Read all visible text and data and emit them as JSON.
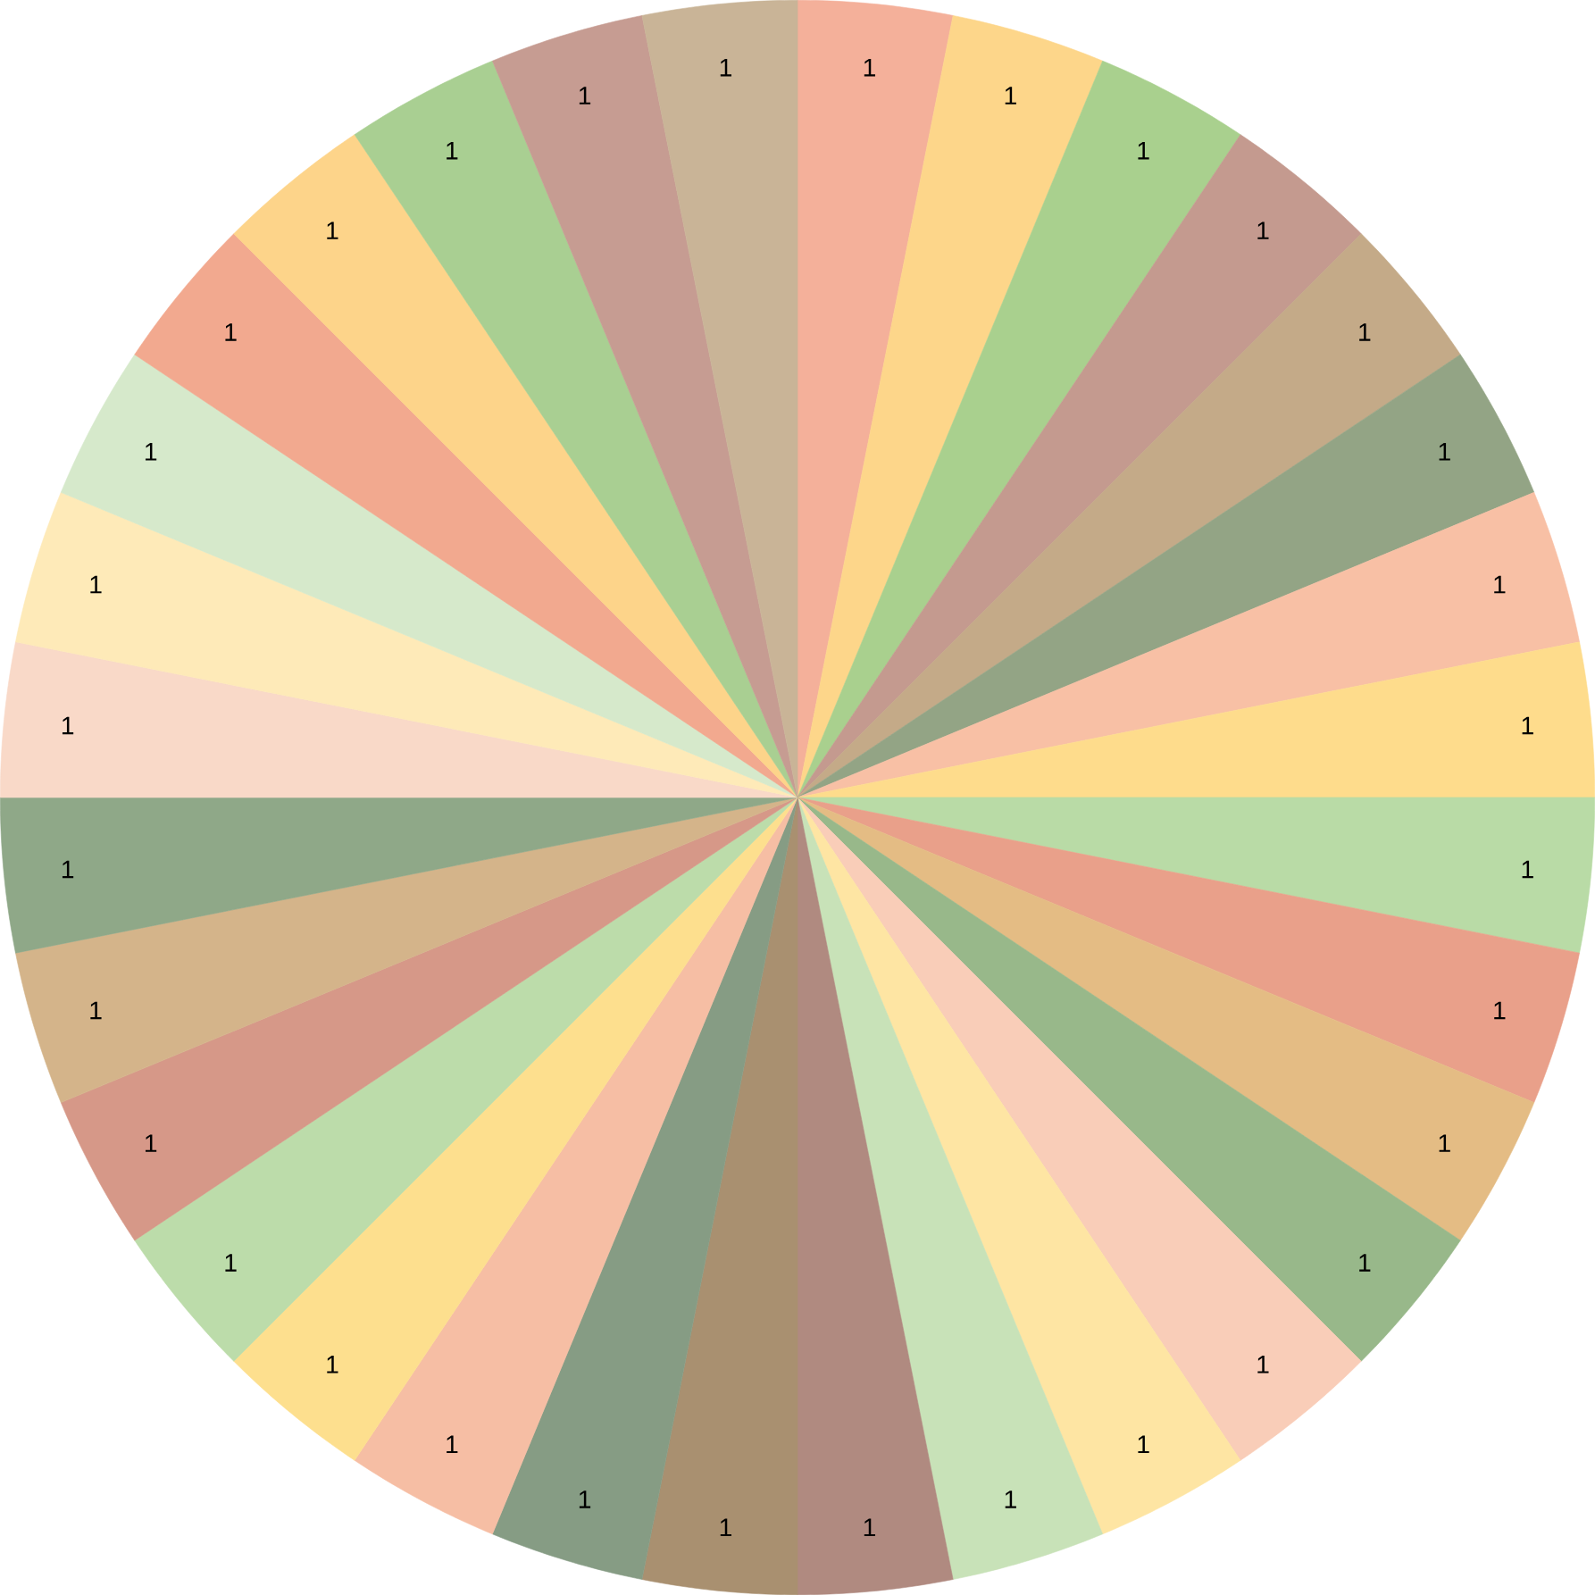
{
  "chart_data": {
    "type": "pie",
    "categories": [
      null,
      null,
      null,
      null,
      null,
      null,
      null,
      null,
      null,
      null,
      null,
      null,
      null,
      null,
      null,
      null,
      null,
      null,
      null,
      null,
      null,
      null,
      null,
      null,
      null,
      null,
      null,
      null,
      null,
      null,
      null,
      null
    ],
    "values": [
      1,
      1,
      1,
      1,
      1,
      1,
      1,
      1,
      1,
      1,
      1,
      1,
      1,
      1,
      1,
      1,
      1,
      1,
      1,
      1,
      1,
      1,
      1,
      1,
      1,
      1,
      1,
      1,
      1,
      1,
      1,
      1
    ],
    "colors": [
      "#f4b09a",
      "#fdd68a",
      "#a9d08e",
      "#c49a8f",
      "#c4aa88",
      "#93a485",
      "#f8c0a5",
      "#fedc8c",
      "#b9dba6",
      "#e9a08a",
      "#e4bc84",
      "#98b88a",
      "#f9cdb8",
      "#fee5a3",
      "#c8e2b8",
      "#b08a80",
      "#a99070",
      "#869c84",
      "#f6bea4",
      "#fddf8e",
      "#bcdcaa",
      "#d69888",
      "#d4b48a",
      "#8fa888",
      "#f9d9c8",
      "#feeab8",
      "#d6e9cb",
      "#f2a98f",
      "#fdd48a",
      "#a9cf92",
      "#c69c92",
      "#c9b497"
    ],
    "data_labels": true
  }
}
